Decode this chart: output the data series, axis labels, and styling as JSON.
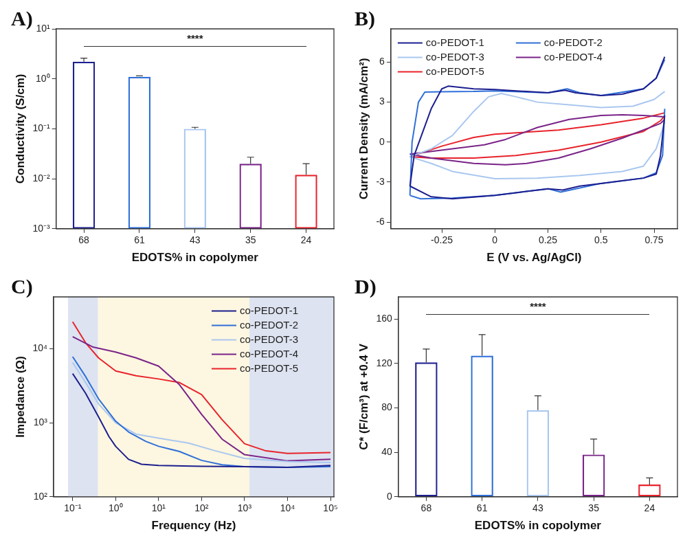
{
  "chart_data": [
    {
      "type": "bar",
      "title": "A)",
      "categories": [
        "68",
        "61",
        "43",
        "35",
        "24"
      ],
      "values": [
        2.2,
        1.1,
        0.1,
        0.02,
        0.012
      ],
      "colors": [
        "#1c1f8f",
        "#2e6fd8",
        "#a9c7ef",
        "#7a2388",
        "#e8232b"
      ],
      "errors": [
        [
          2.2,
          2.6
        ],
        [
          1.1,
          1.15
        ],
        [
          0.1,
          0.107
        ],
        [
          0.02,
          0.027
        ],
        [
          0.012,
          0.02
        ]
      ],
      "xlabel": "EDOTS% in copolymer",
      "ylabel": "Conductivity (S/cm)",
      "log": "y",
      "ylim": [
        0.001,
        10
      ],
      "yticks": [
        {
          "value": 0.001,
          "label": "10⁻³"
        },
        {
          "value": 0.01,
          "label": "10⁻²"
        },
        {
          "value": 0.1,
          "label": "10⁻¹"
        },
        {
          "value": 1,
          "label": "10⁰"
        },
        {
          "value": 10,
          "label": "10¹"
        }
      ],
      "annotations": [
        "****"
      ]
    },
    {
      "type": "line",
      "title": "B)",
      "xlabel": "E (V vs. Ag/AgCl)",
      "ylabel": "Current Density (mA/cm²)",
      "xlim": [
        -0.49,
        0.86
      ],
      "xticks": [
        -0.25,
        0,
        0.25,
        0.5,
        0.75
      ],
      "ylim": [
        -6.5,
        8.5
      ],
      "yticks": [
        -6,
        -3,
        0,
        3,
        6
      ],
      "legend": "top left",
      "series": [
        {
          "name": "co-PEDOT-1",
          "color": "#1c1f8f",
          "x": [
            -0.4,
            -0.38,
            -0.3,
            -0.25,
            -0.22,
            -0.1,
            0,
            0.1,
            0.25,
            0.33,
            0.38,
            0.5,
            0.6,
            0.7,
            0.76,
            0.8
          ],
          "values": [
            -3.3,
            -1,
            2.5,
            4,
            4.2,
            4,
            3.95,
            3.85,
            3.7,
            3.9,
            3.7,
            3.5,
            3.6,
            4,
            4.8,
            6.4
          ]
        },
        {
          "color": "#1c1f8f",
          "x": [
            -0.4,
            -0.3,
            -0.2,
            0,
            0.1,
            0.25,
            0.32,
            0.4,
            0.5,
            0.6,
            0.7,
            0.76,
            0.78,
            0.8
          ],
          "values": [
            -3.3,
            -4.1,
            -4.25,
            -4,
            -3.8,
            -3.5,
            -3.6,
            -3.3,
            -3.1,
            -2.9,
            -2.7,
            -2.4,
            -1,
            2
          ]
        },
        {
          "name": "co-PEDOT-2",
          "color": "#2e6fd8",
          "x": [
            -0.4,
            -0.39,
            -0.36,
            -0.33,
            -0.25,
            -0.1,
            0,
            0.25,
            0.34,
            0.4,
            0.5,
            0.7,
            0.76,
            0.8
          ],
          "values": [
            -4,
            0,
            3,
            3.75,
            3.78,
            3.8,
            3.85,
            3.7,
            4,
            3.7,
            3.5,
            4,
            4.8,
            6.2
          ]
        },
        {
          "color": "#2e6fd8",
          "x": [
            -0.4,
            -0.35,
            -0.2,
            0,
            0.25,
            0.31,
            0.5,
            0.7,
            0.76,
            0.79,
            0.8
          ],
          "values": [
            -4,
            -4.25,
            -4.2,
            -4,
            -3.5,
            -3.75,
            -3.1,
            -2.7,
            -2.3,
            -1,
            2.5
          ]
        },
        {
          "name": "co-PEDOT-3",
          "color": "#a9c7ef",
          "x": [
            -0.4,
            -0.3,
            -0.2,
            -0.1,
            -0.03,
            0.03,
            0.1,
            0.2,
            0.35,
            0.5,
            0.65,
            0.75,
            0.8
          ],
          "values": [
            -1.1,
            -0.5,
            0.5,
            2.3,
            3.4,
            3.65,
            3.4,
            3,
            2.8,
            2.6,
            2.7,
            3.2,
            3.8
          ]
        },
        {
          "color": "#a9c7ef",
          "x": [
            -0.4,
            -0.3,
            -0.2,
            0,
            0.2,
            0.4,
            0.6,
            0.7,
            0.76,
            0.8
          ],
          "values": [
            -1.1,
            -1.6,
            -2.2,
            -2.75,
            -2.7,
            -2.5,
            -2.2,
            -1.8,
            -0.5,
            1.5
          ]
        },
        {
          "name": "co-PEDOT-4",
          "color": "#7a2388",
          "x": [
            -0.4,
            -0.2,
            -0.05,
            0.05,
            0.2,
            0.35,
            0.5,
            0.6,
            0.7,
            0.8
          ],
          "values": [
            -0.9,
            -0.5,
            -0.2,
            0.2,
            1.1,
            1.7,
            2,
            2.05,
            2,
            1.9
          ]
        },
        {
          "color": "#7a2388",
          "x": [
            -0.4,
            -0.3,
            -0.1,
            0.05,
            0.15,
            0.3,
            0.45,
            0.6,
            0.78,
            0.8
          ],
          "values": [
            -0.9,
            -1.2,
            -1.6,
            -1.7,
            -1.6,
            -1.2,
            -0.5,
            0.3,
            1.4,
            1.7
          ]
        },
        {
          "name": "co-PEDOT-5",
          "color": "#e8232b",
          "x": [
            -0.4,
            -0.25,
            -0.1,
            0,
            0.1,
            0.3,
            0.5,
            0.7,
            0.8
          ],
          "values": [
            -1.1,
            -0.3,
            0.35,
            0.6,
            0.7,
            0.9,
            1.3,
            1.8,
            2.2
          ]
        },
        {
          "color": "#e8232b",
          "x": [
            -0.4,
            -0.3,
            -0.1,
            0.1,
            0.3,
            0.5,
            0.7,
            0.78,
            0.8
          ],
          "values": [
            -1.1,
            -1.2,
            -1.2,
            -1,
            -0.6,
            0,
            0.8,
            1.6,
            2
          ]
        }
      ]
    },
    {
      "type": "line",
      "title": "C)",
      "xlabel": "Frequency (Hz)",
      "ylabel": "Impedance (Ω)",
      "log": "xy",
      "xlim": [
        0.036,
        120000
      ],
      "ylim": [
        100,
        50000
      ],
      "xticks": [
        {
          "value": 0.1,
          "label": "10⁻¹"
        },
        {
          "value": 1,
          "label": "10⁰"
        },
        {
          "value": 10,
          "label": "10¹"
        },
        {
          "value": 100,
          "label": "10²"
        },
        {
          "value": 1000,
          "label": "10³"
        },
        {
          "value": 10000,
          "label": "10⁴"
        },
        {
          "value": 100000,
          "label": "10⁵"
        }
      ],
      "yticks": [
        {
          "value": 100,
          "label": "10²"
        },
        {
          "value": 1000,
          "label": "10³"
        },
        {
          "value": 10000,
          "label": "10⁴"
        }
      ],
      "legend": "top right",
      "bands": [
        {
          "axis": "x",
          "from": 0.078,
          "to": 0.39,
          "color": "#dde3f0"
        },
        {
          "axis": "x",
          "from": 0.39,
          "to": 1300,
          "color": "#fdf6e1"
        },
        {
          "axis": "x",
          "from": 1300,
          "to": 120000,
          "color": "#dde3f0"
        }
      ],
      "series": [
        {
          "name": "co-PEDOT-1",
          "color": "#1c1f8f",
          "x": [
            0.1,
            0.2,
            0.4,
            0.7,
            1,
            2,
            4,
            10,
            100,
            1000,
            10000,
            100000
          ],
          "values": [
            4600,
            2500,
            1200,
            650,
            480,
            320,
            275,
            265,
            258,
            255,
            250,
            265
          ]
        },
        {
          "name": "co-PEDOT-2",
          "color": "#2e6fd8",
          "x": [
            0.1,
            0.2,
            0.4,
            1,
            2,
            5,
            10,
            30,
            100,
            300,
            1000,
            10000,
            100000
          ],
          "values": [
            7800,
            4200,
            2100,
            1050,
            750,
            560,
            480,
            410,
            310,
            270,
            255,
            250,
            255
          ]
        },
        {
          "name": "co-PEDOT-3",
          "color": "#a9c7ef",
          "x": [
            0.1,
            0.2,
            0.4,
            1,
            3,
            10,
            50,
            200,
            1000,
            10000,
            100000
          ],
          "values": [
            6500,
            3500,
            1800,
            1000,
            700,
            620,
            530,
            420,
            330,
            300,
            290
          ]
        },
        {
          "name": "co-PEDOT-4",
          "color": "#7a2388",
          "x": [
            0.1,
            0.3,
            1,
            3,
            10,
            30,
            100,
            300,
            1000,
            10000,
            100000
          ],
          "values": [
            14500,
            10500,
            9000,
            7500,
            5800,
            3300,
            1300,
            600,
            370,
            305,
            320
          ]
        },
        {
          "name": "co-PEDOT-5",
          "color": "#e8232b",
          "x": [
            0.1,
            0.2,
            0.4,
            1,
            3,
            10,
            30,
            100,
            300,
            1000,
            3000,
            10000,
            100000
          ],
          "values": [
            23000,
            12000,
            7500,
            5000,
            4300,
            3900,
            3500,
            2400,
            1100,
            520,
            420,
            385,
            395
          ]
        }
      ]
    },
    {
      "type": "bar",
      "title": "D)",
      "categories": [
        "68",
        "61",
        "43",
        "35",
        "24"
      ],
      "values": [
        121,
        127,
        78,
        38,
        11
      ],
      "colors": [
        "#1c1f8f",
        "#2e6fd8",
        "#a9c7ef",
        "#7a2388",
        "#e8232b"
      ],
      "errors": [
        [
          121,
          133
        ],
        [
          127,
          146
        ],
        [
          78,
          91
        ],
        [
          38,
          52
        ],
        [
          11,
          17
        ]
      ],
      "xlabel": "EDOTS% in copolymer",
      "ylabel": "C* (F/cm³) at +0.4 V",
      "ylim": [
        0,
        180
      ],
      "yticks": [
        0,
        40,
        80,
        120,
        160
      ],
      "annotations": [
        "****"
      ]
    }
  ]
}
